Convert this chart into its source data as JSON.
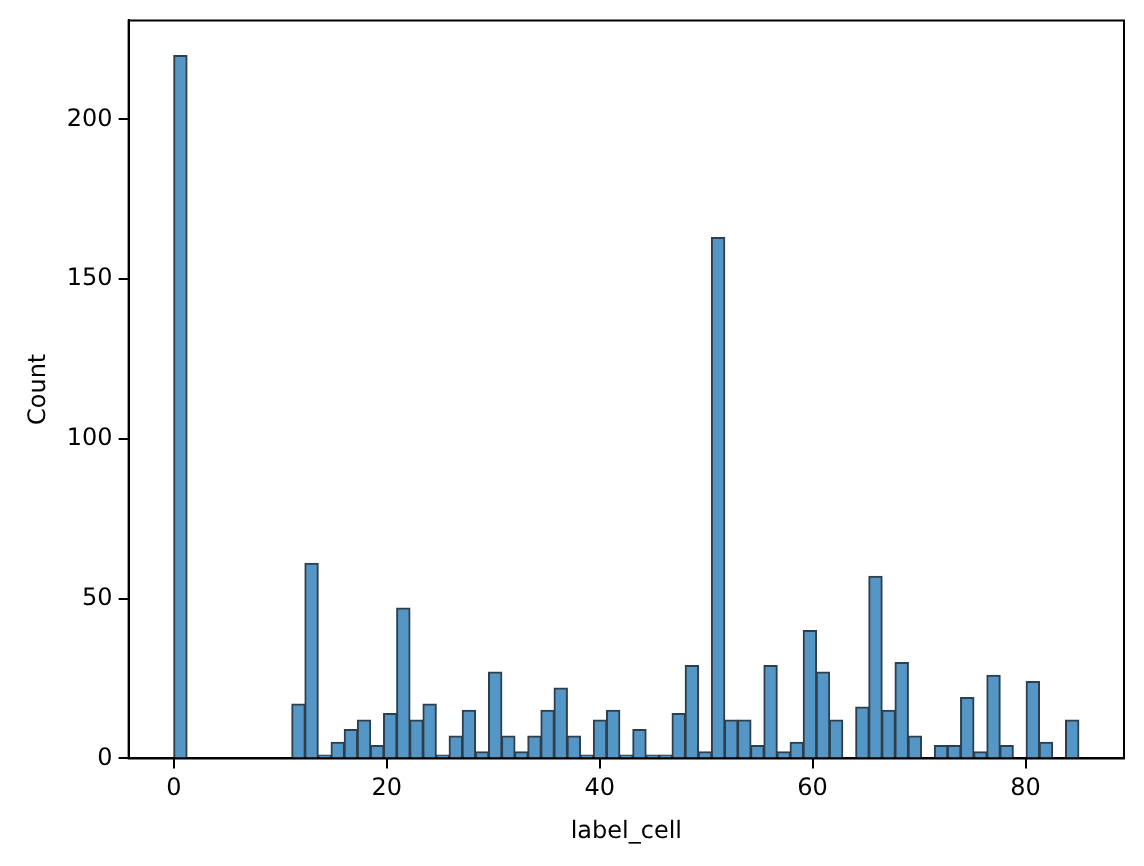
{
  "chart_data": {
    "type": "histogram",
    "xlabel": "label_cell",
    "ylabel": "Count",
    "color": "#5497c6",
    "bins": [
      0,
      1.23,
      2.46,
      3.7,
      4.93,
      6.16,
      7.39,
      8.62,
      9.86,
      11.09,
      12.32,
      13.55,
      14.78,
      16.01,
      17.25,
      18.48,
      19.71,
      20.94,
      22.17,
      23.41,
      24.64,
      25.87,
      27.1,
      28.33,
      29.57,
      30.8,
      32.03,
      33.26,
      34.49,
      35.72,
      36.96,
      38.19,
      39.42,
      40.65,
      41.88,
      43.12,
      44.35,
      45.58,
      46.81,
      48.04,
      49.28,
      50.51,
      51.74,
      52.97,
      54.2,
      55.43,
      56.67,
      57.9,
      59.13,
      60.36,
      61.59,
      62.83,
      64.06,
      65.29,
      66.52,
      67.75,
      68.99,
      70.22,
      71.45,
      72.68,
      73.91,
      75.14,
      76.38,
      77.61,
      78.84,
      80.07,
      81.3,
      82.54,
      83.77,
      85
    ],
    "values": [
      220,
      0,
      0,
      0,
      0,
      0,
      0,
      0,
      0,
      17,
      61,
      1,
      5,
      9,
      12,
      4,
      14,
      47,
      12,
      17,
      1,
      7,
      15,
      2,
      27,
      7,
      2,
      7,
      15,
      22,
      7,
      1,
      12,
      15,
      1,
      9,
      1,
      1,
      14,
      29,
      2,
      163,
      12,
      12,
      4,
      29,
      2,
      5,
      40,
      27,
      12,
      0,
      16,
      57,
      15,
      30,
      7,
      0,
      4,
      4,
      19,
      2,
      26,
      4,
      0,
      24,
      5,
      0,
      12
    ],
    "xlim": [
      -4.25,
      89.25
    ],
    "ylim": [
      0,
      231
    ],
    "xticks": [
      0,
      20,
      40,
      60,
      80
    ],
    "yticks": [
      0,
      50,
      100,
      150,
      200
    ],
    "grid": false,
    "legend": false
  }
}
